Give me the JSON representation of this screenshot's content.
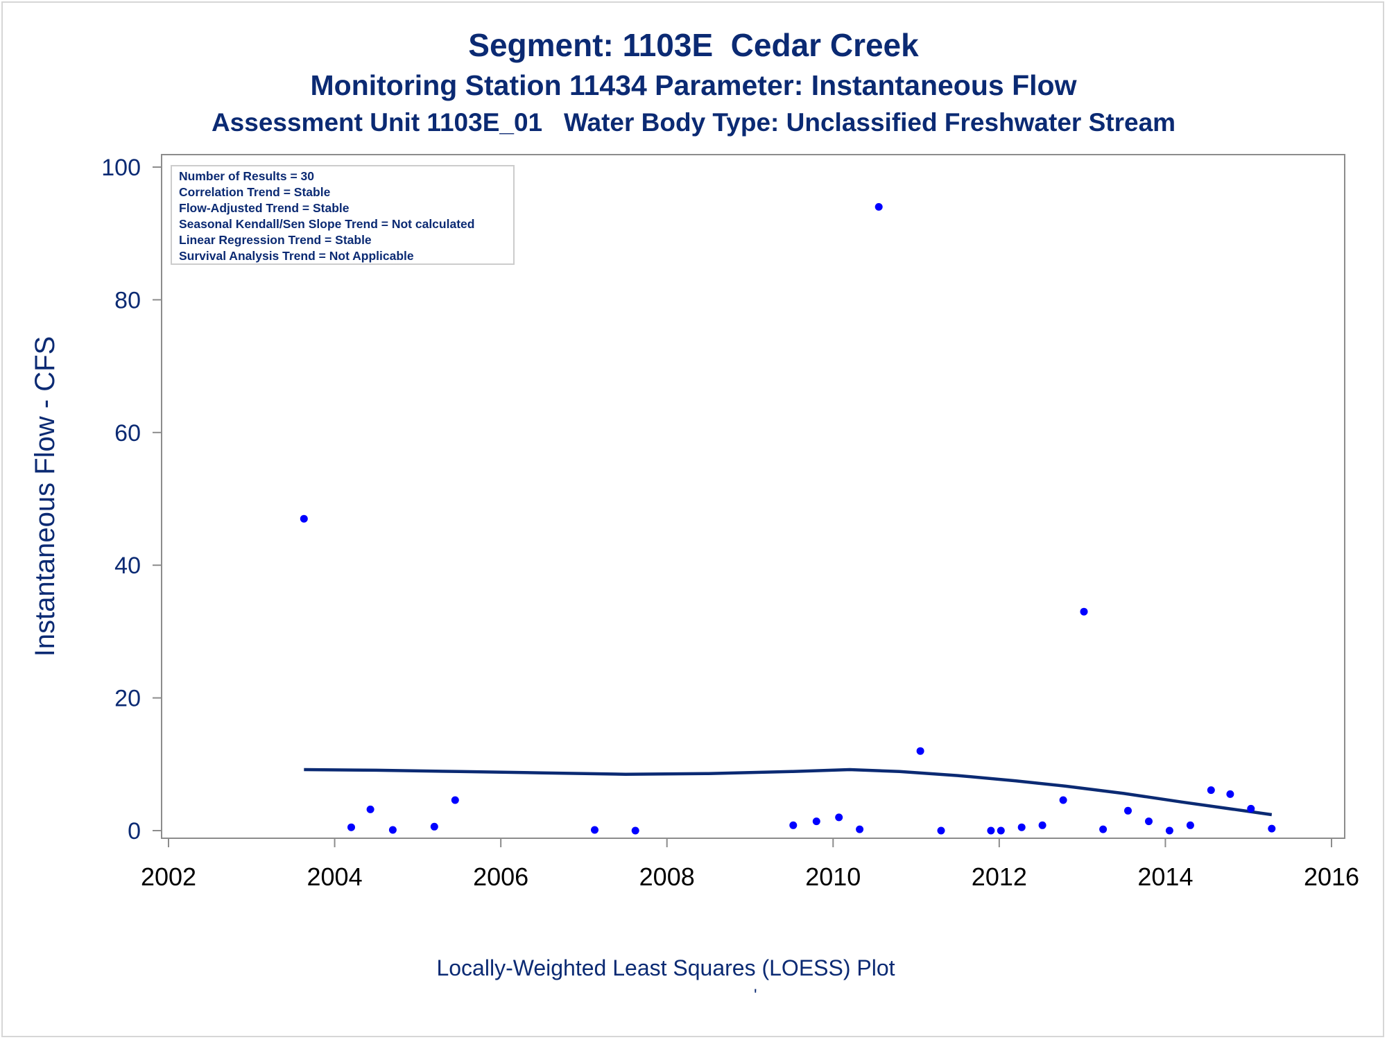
{
  "titles": {
    "line1": "Segment: 1103E  Cedar Creek",
    "line2": "Monitoring Station 11434 Parameter: Instantaneous Flow",
    "line3": "Assessment Unit 1103E_01   Water Body Type: Unclassified Freshwater Stream"
  },
  "footnote": "Locally-Weighted Least Squares (LOESS) Plot",
  "footmark": "'",
  "colors": {
    "title": "#0b2a73",
    "points": "#0000ff",
    "loess": "#0b2a73",
    "axis": "#8c8c8c"
  },
  "chart_data": {
    "type": "scatter",
    "ylabel": "Instantaneous Flow - CFS",
    "xlabel": "",
    "xlim": [
      2002,
      2016
    ],
    "ylim": [
      0,
      100
    ],
    "x_ticks": [
      "2002",
      "2004",
      "2006",
      "2008",
      "2010",
      "2012",
      "2014",
      "2016"
    ],
    "y_ticks": [
      "0",
      "20",
      "40",
      "60",
      "80",
      "100"
    ],
    "grid": false,
    "legend_placement": "top-left",
    "inset_stats": [
      "Number of Results = 30",
      "Correlation Trend = Stable",
      "Flow-Adjusted Trend = Stable",
      "Seasonal Kendall/Sen Slope Trend = Not calculated",
      "Linear Regression Trend = Stable",
      "Survival Analysis Trend = Not Applicable"
    ],
    "points": [
      {
        "x": 2003.63,
        "y": 47
      },
      {
        "x": 2004.2,
        "y": 0.5
      },
      {
        "x": 2004.43,
        "y": 3.2
      },
      {
        "x": 2004.7,
        "y": 0.1
      },
      {
        "x": 2005.2,
        "y": 0.6
      },
      {
        "x": 2005.45,
        "y": 4.6
      },
      {
        "x": 2007.13,
        "y": 0.1
      },
      {
        "x": 2007.62,
        "y": 0.0
      },
      {
        "x": 2009.52,
        "y": 0.8
      },
      {
        "x": 2009.8,
        "y": 1.4
      },
      {
        "x": 2010.07,
        "y": 2.0
      },
      {
        "x": 2010.32,
        "y": 0.2
      },
      {
        "x": 2010.55,
        "y": 94
      },
      {
        "x": 2011.05,
        "y": 12
      },
      {
        "x": 2011.3,
        "y": 0.0
      },
      {
        "x": 2011.9,
        "y": 0.0
      },
      {
        "x": 2012.02,
        "y": 0.0
      },
      {
        "x": 2012.27,
        "y": 0.5
      },
      {
        "x": 2012.52,
        "y": 0.8
      },
      {
        "x": 2012.77,
        "y": 4.6
      },
      {
        "x": 2013.02,
        "y": 33
      },
      {
        "x": 2013.25,
        "y": 0.2
      },
      {
        "x": 2013.55,
        "y": 3.0
      },
      {
        "x": 2013.8,
        "y": 1.4
      },
      {
        "x": 2014.05,
        "y": 0.0
      },
      {
        "x": 2014.3,
        "y": 0.8
      },
      {
        "x": 2014.55,
        "y": 6.1
      },
      {
        "x": 2014.78,
        "y": 5.5
      },
      {
        "x": 2015.03,
        "y": 3.3
      },
      {
        "x": 2015.28,
        "y": 0.3
      }
    ],
    "loess": [
      {
        "x": 2003.63,
        "y": 9.2
      },
      {
        "x": 2004.5,
        "y": 9.1
      },
      {
        "x": 2005.5,
        "y": 8.9
      },
      {
        "x": 2006.5,
        "y": 8.7
      },
      {
        "x": 2007.5,
        "y": 8.5
      },
      {
        "x": 2008.5,
        "y": 8.6
      },
      {
        "x": 2009.5,
        "y": 8.9
      },
      {
        "x": 2010.2,
        "y": 9.2
      },
      {
        "x": 2010.8,
        "y": 8.9
      },
      {
        "x": 2011.5,
        "y": 8.3
      },
      {
        "x": 2012.2,
        "y": 7.5
      },
      {
        "x": 2012.8,
        "y": 6.7
      },
      {
        "x": 2013.5,
        "y": 5.6
      },
      {
        "x": 2014.2,
        "y": 4.3
      },
      {
        "x": 2015.28,
        "y": 2.4
      }
    ]
  }
}
